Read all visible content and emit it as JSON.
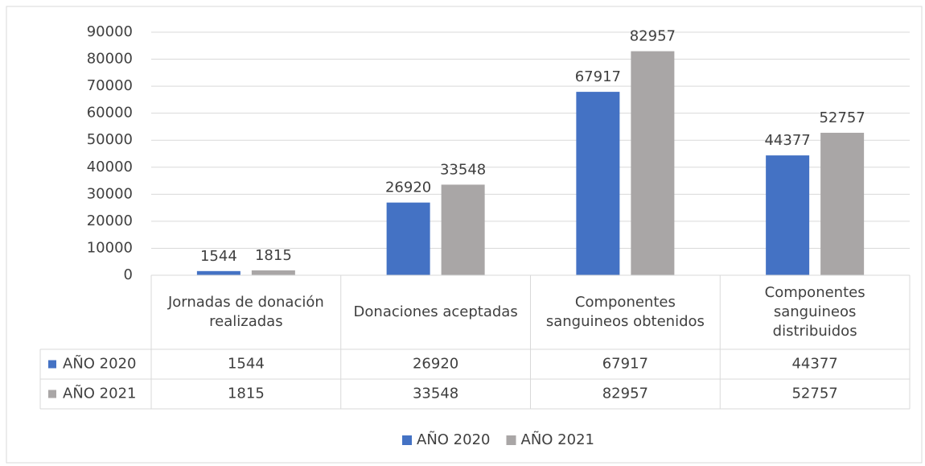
{
  "chart_data": {
    "type": "bar",
    "categories": [
      "Jornadas de donación realizadas",
      "Donaciones aceptadas",
      "Componentes sanguineos obtenidos",
      "Componentes sanguineos distribuidos"
    ],
    "series": [
      {
        "name": "AÑO 2020",
        "color": "#4472c4",
        "values": [
          1544,
          26920,
          67917,
          44377
        ]
      },
      {
        "name": "AÑO 2021",
        "color": "#a9a6a6",
        "values": [
          1815,
          33548,
          82957,
          52757
        ]
      }
    ],
    "ylim": [
      0,
      90000
    ],
    "yticks": [
      0,
      10000,
      20000,
      30000,
      40000,
      50000,
      60000,
      70000,
      80000,
      90000
    ],
    "grid": true,
    "legend": "bottom",
    "data_table": true
  }
}
